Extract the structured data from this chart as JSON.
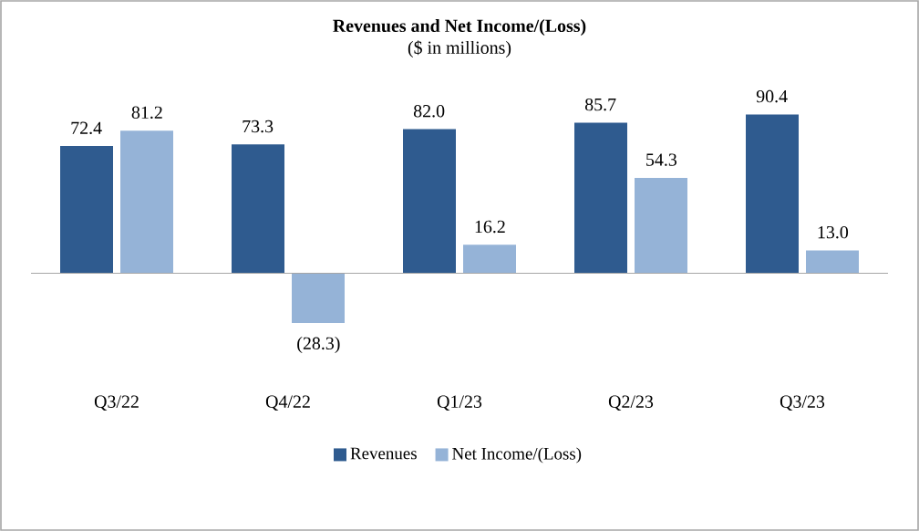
{
  "chart_data": {
    "type": "bar",
    "title": "Revenues and Net Income/(Loss)",
    "subtitle": "($ in millions)",
    "categories": [
      "Q3/22",
      "Q4/22",
      "Q1/23",
      "Q2/23",
      "Q3/23"
    ],
    "series": [
      {
        "name": "Revenues",
        "color": "#2f5b8f",
        "values": [
          72.4,
          73.3,
          82.0,
          85.7,
          90.4
        ],
        "value_labels": [
          "72.4",
          "73.3",
          "82.0",
          "85.7",
          "90.4"
        ]
      },
      {
        "name": "Net Income/(Loss)",
        "color": "#95b3d7",
        "values": [
          81.2,
          -28.3,
          16.2,
          54.3,
          13.0
        ],
        "value_labels": [
          "81.2",
          "(28.3)",
          "16.2",
          "54.3",
          "13.0"
        ]
      }
    ],
    "legend": "bottom"
  }
}
